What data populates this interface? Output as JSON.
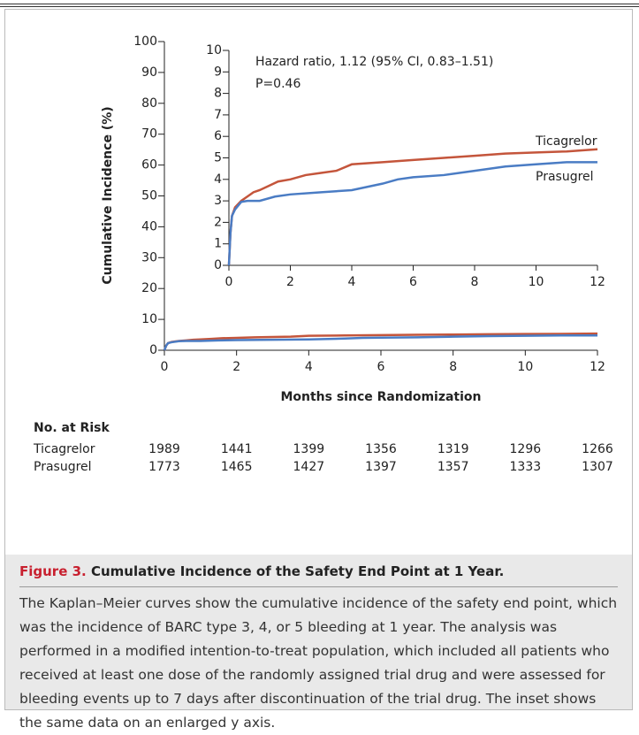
{
  "chart_data": {
    "type": "line",
    "step": true,
    "xlabel": "Months since Randomization",
    "ylabel": "Cumulative Incidence (%)",
    "xlim": [
      0,
      12
    ],
    "xticks": [
      0,
      2,
      4,
      6,
      8,
      10,
      12
    ],
    "ylim": [
      0,
      100
    ],
    "yticks": [
      0,
      10,
      20,
      30,
      40,
      50,
      60,
      70,
      80,
      90,
      100
    ],
    "inset": {
      "xlim": [
        0,
        12
      ],
      "xticks": [
        0,
        2,
        4,
        6,
        8,
        10,
        12
      ],
      "ylim": [
        0,
        10
      ],
      "yticks": [
        0,
        1,
        2,
        3,
        4,
        5,
        6,
        7,
        8,
        9,
        10
      ]
    },
    "annotations": [
      "Hazard ratio, 1.12 (95% CI, 0.83–1.51)",
      "P=0.46"
    ],
    "at_risk_title": "No. at Risk",
    "series": [
      {
        "name": "Ticagrelor",
        "color": "#c4553b",
        "x": [
          0,
          0.05,
          0.1,
          0.2,
          0.4,
          0.6,
          0.8,
          1,
          1.3,
          1.6,
          2,
          2.5,
          3,
          3.5,
          4,
          5,
          6,
          7,
          8,
          9,
          10,
          11,
          12
        ],
        "values": [
          0,
          1.5,
          2.3,
          2.7,
          3.0,
          3.2,
          3.4,
          3.5,
          3.7,
          3.9,
          4.0,
          4.2,
          4.3,
          4.4,
          4.7,
          4.8,
          4.9,
          5.0,
          5.1,
          5.2,
          5.25,
          5.3,
          5.4
        ],
        "at_risk": [
          1989,
          1441,
          1399,
          1356,
          1319,
          1296,
          1266
        ]
      },
      {
        "name": "Prasugrel",
        "color": "#4a7cc4",
        "x": [
          0,
          0.05,
          0.1,
          0.2,
          0.4,
          0.6,
          1,
          1.5,
          2,
          3,
          4,
          5,
          5.5,
          6,
          7,
          8,
          9,
          10,
          11,
          12
        ],
        "values": [
          0,
          1.5,
          2.3,
          2.6,
          2.95,
          3.0,
          3.0,
          3.2,
          3.3,
          3.4,
          3.5,
          3.8,
          4.0,
          4.1,
          4.2,
          4.4,
          4.6,
          4.7,
          4.8,
          4.8
        ],
        "at_risk": [
          1773,
          1465,
          1427,
          1397,
          1357,
          1333,
          1307
        ]
      }
    ]
  },
  "caption": {
    "label": "Figure 3.",
    "title": "Cumulative Incidence of the Safety End Point at 1 Year.",
    "text": "The Kaplan–Meier curves show the cumulative incidence of the safety end point, which was the incidence of BARC type 3, 4, or 5 bleeding at 1 year. The analysis was performed in a modified intention-to-treat population, which included all patients who received at least one dose of the randomly assigned trial drug and were assessed for bleeding events up to 7 days after discontinuation of the trial drug. The inset shows the same data on an enlarged y axis."
  }
}
